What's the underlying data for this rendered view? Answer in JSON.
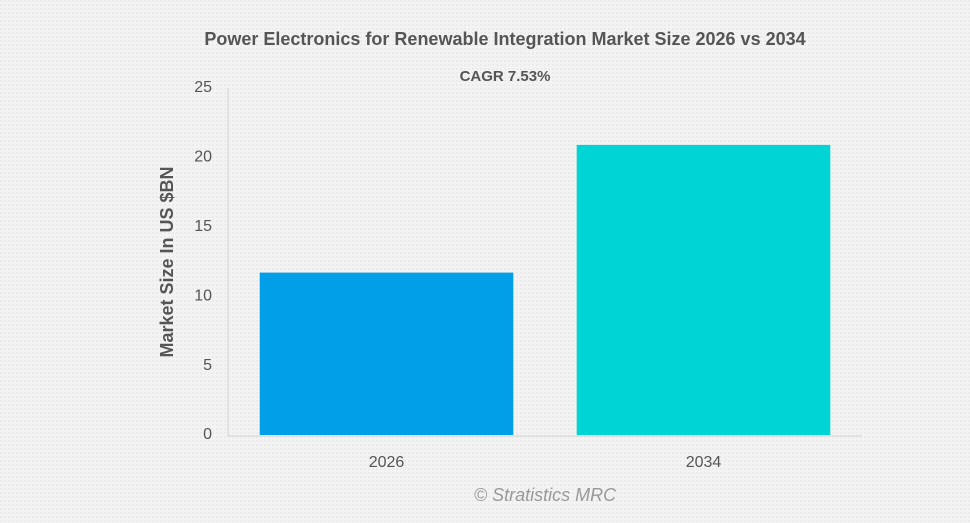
{
  "chart_data": {
    "type": "bar",
    "title": "Power Electronics for Renewable Integration Market Size 2026 vs 2034",
    "subtitle": "CAGR 7.53%",
    "y_label": "Market Size In US $BN",
    "watermark": "© Stratistics MRC",
    "categories": [
      "2026",
      "2034"
    ],
    "values": [
      11.7,
      20.9
    ],
    "colors": [
      "#009fe8",
      "#00d4d4"
    ],
    "ylim": [
      0,
      25
    ],
    "yticks": [
      0,
      5,
      10,
      15,
      20,
      25
    ],
    "grid": false
  }
}
